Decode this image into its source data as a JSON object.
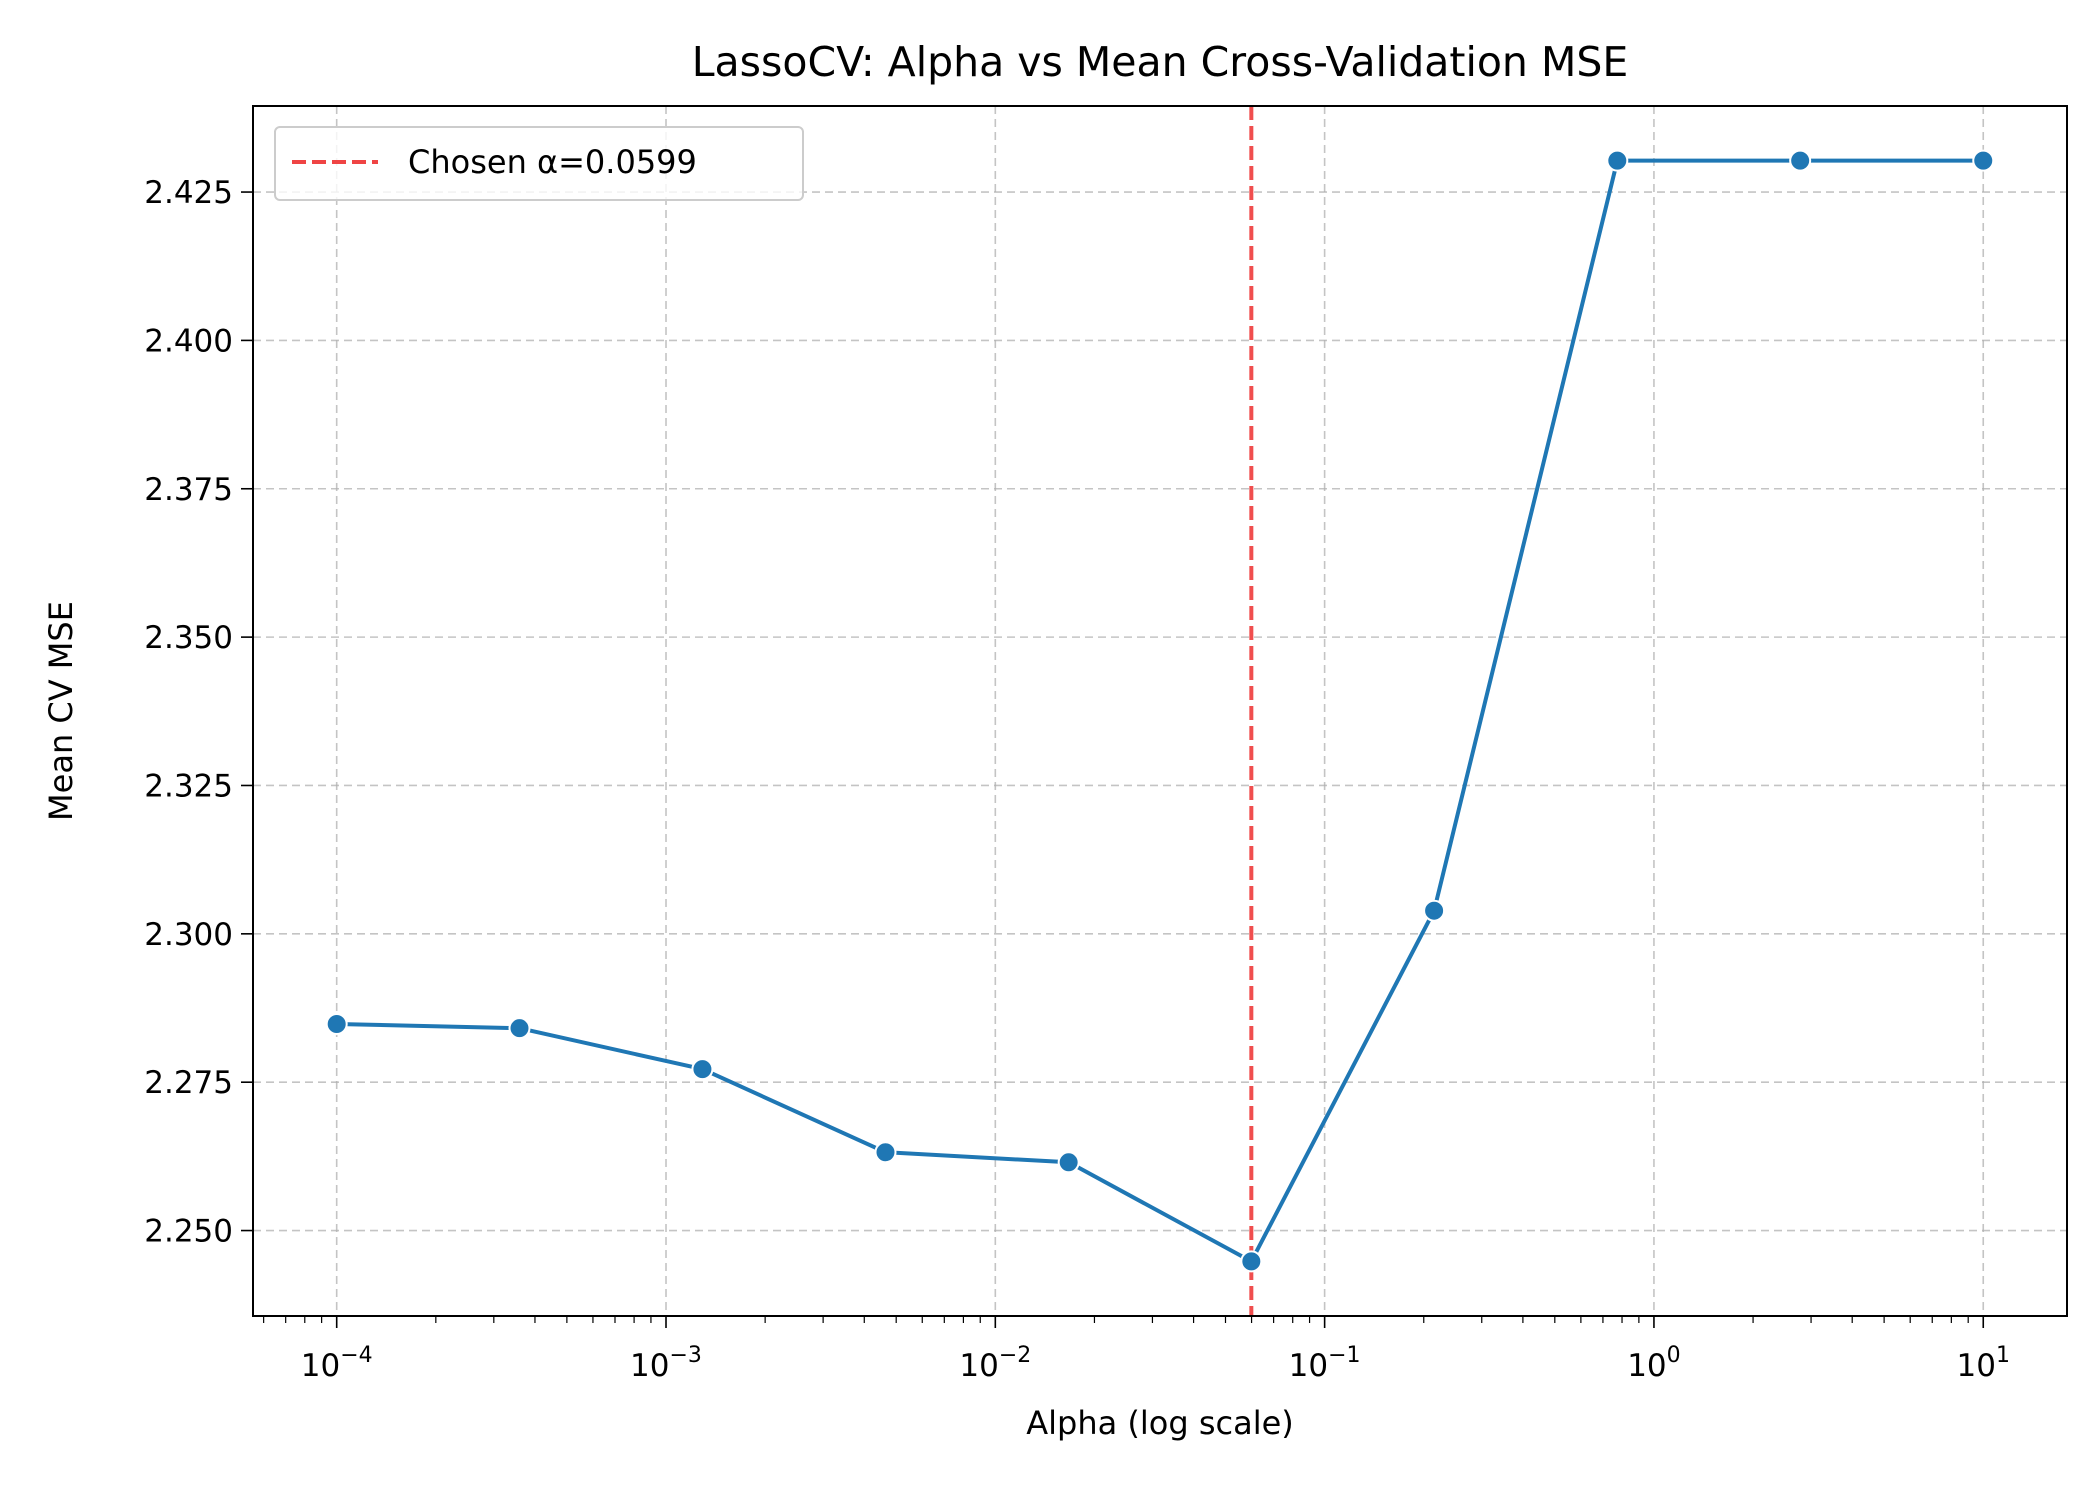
{
  "chart_data": {
    "type": "line",
    "title": "LassoCV: Alpha vs Mean Cross-Validation MSE",
    "xlabel": "Alpha (log scale)",
    "ylabel": "Mean CV MSE",
    "xscale": "log",
    "xlim": [
      5.57e-05,
      17.96
    ],
    "ylim": [
      2.2356,
      2.4395
    ],
    "x_tick_values": [
      0.0001,
      0.001,
      0.01,
      0.1,
      1,
      10
    ],
    "x_tick_labels": [
      {
        "base": "10",
        "exp": "−4"
      },
      {
        "base": "10",
        "exp": "−3"
      },
      {
        "base": "10",
        "exp": "−2"
      },
      {
        "base": "10",
        "exp": "−1"
      },
      {
        "base": "10",
        "exp": "0"
      },
      {
        "base": "10",
        "exp": "1"
      }
    ],
    "y_ticks": [
      2.25,
      2.275,
      2.3,
      2.325,
      2.35,
      2.375,
      2.4,
      2.425
    ],
    "y_tick_labels": [
      "2.250",
      "2.275",
      "2.300",
      "2.325",
      "2.350",
      "2.375",
      "2.400",
      "2.425"
    ],
    "grid": true,
    "legend_position": "top-left",
    "series": [
      {
        "color": "#1f77b4",
        "marker": "circle",
        "x": [
          0.0001,
          0.000359,
          0.00129,
          0.00464,
          0.0167,
          0.0599,
          0.215,
          0.774,
          2.78,
          10
        ],
        "y": [
          2.2848,
          2.2841,
          2.2772,
          2.2632,
          2.2615,
          2.2448,
          2.3039,
          2.4303,
          2.4303,
          2.4303
        ]
      }
    ],
    "reference_line": {
      "orientation": "vertical",
      "x": 0.0599,
      "color": "#ef4444",
      "style": "dashed",
      "legend_label": "Chosen α=0.0599"
    }
  }
}
